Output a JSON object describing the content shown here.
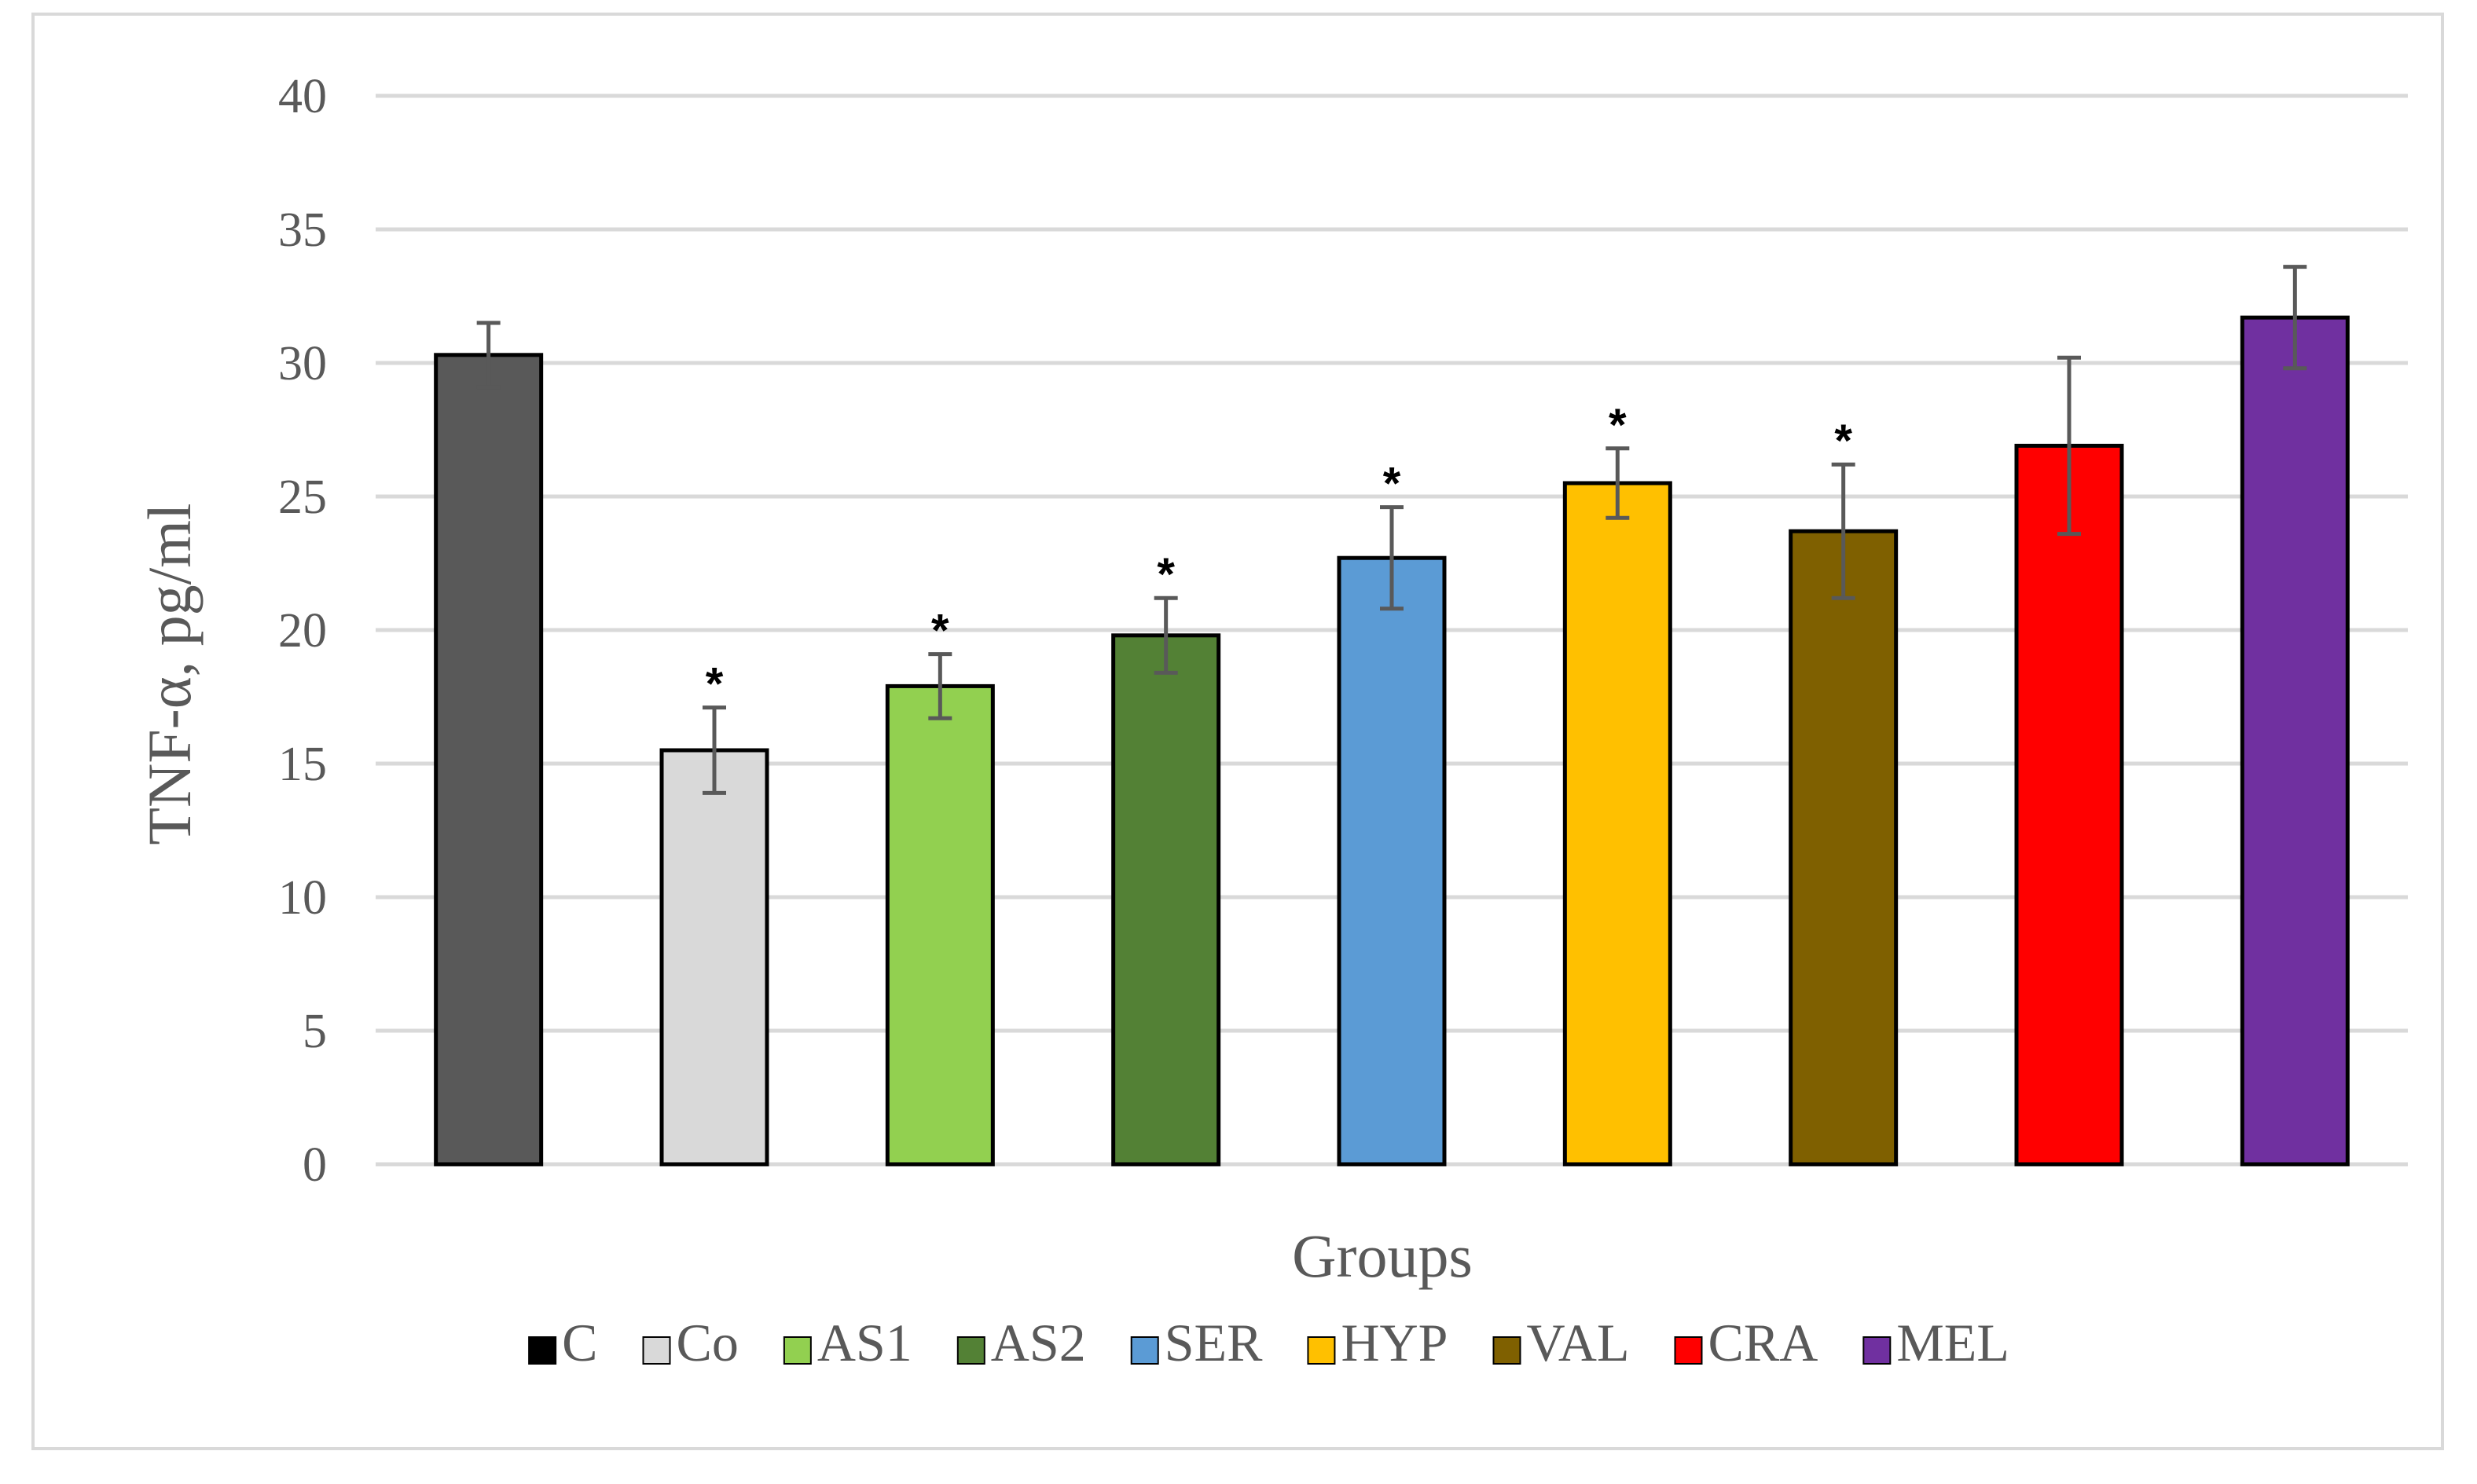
{
  "chart_data": {
    "type": "bar",
    "title": "",
    "xlabel": "Groups",
    "ylabel": "TNF-α, pg/ml",
    "ylim": [
      0,
      40
    ],
    "yticks": [
      0,
      5,
      10,
      15,
      20,
      25,
      30,
      35,
      40
    ],
    "grid": true,
    "legend_position": "bottom",
    "categories": [
      "C",
      "Co",
      "AS1",
      "AS2",
      "SER",
      "HYP",
      "VAL",
      "CRA",
      "MEL"
    ],
    "values": [
      30.3,
      15.5,
      17.9,
      19.8,
      22.7,
      25.5,
      23.7,
      26.9,
      31.7
    ],
    "errors": [
      1.2,
      1.6,
      1.2,
      1.4,
      1.9,
      1.3,
      2.5,
      3.3,
      1.9
    ],
    "significance": [
      "",
      "*",
      "*",
      "*",
      "*",
      "*",
      "*",
      "",
      ""
    ],
    "colors": [
      "#595959",
      "#d9d9d9",
      "#92d050",
      "#538135",
      "#5b9bd5",
      "#ffc000",
      "#7f6000",
      "#ff0000",
      "#7030a0"
    ],
    "legend_colors": [
      "#000000",
      "#d9d9d9",
      "#92d050",
      "#538135",
      "#5b9bd5",
      "#ffc000",
      "#7f6000",
      "#ff0000",
      "#7030a0"
    ]
  }
}
